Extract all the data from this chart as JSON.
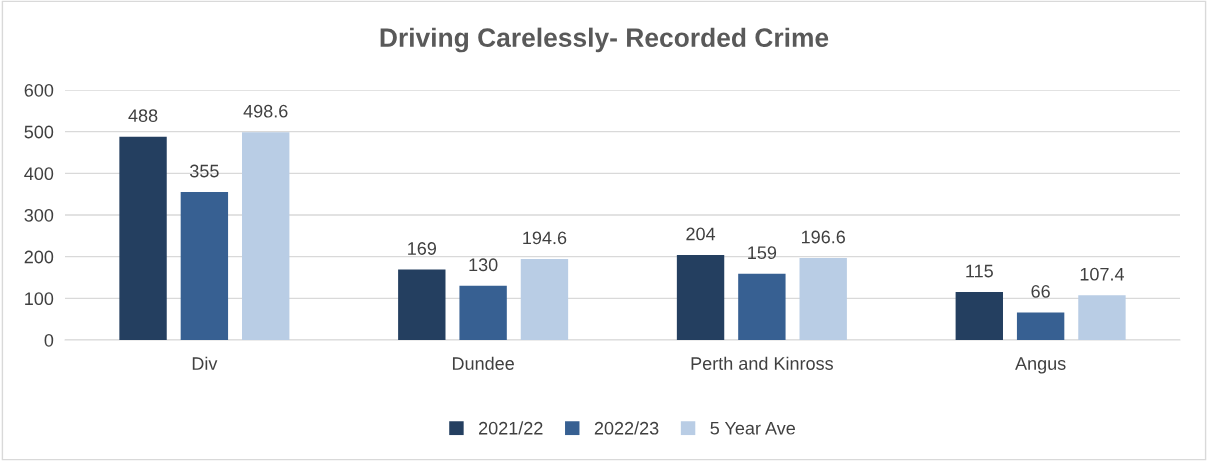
{
  "chart_data": {
    "type": "bar",
    "title": "Driving Carelessly- Recorded Crime",
    "categories": [
      "Div",
      "Dundee",
      "Perth and Kinross",
      "Angus"
    ],
    "series": [
      {
        "name": "2021/22",
        "color": "#243f60",
        "values": [
          488,
          169,
          204,
          115
        ]
      },
      {
        "name": "2022/23",
        "color": "#376092",
        "values": [
          355,
          130,
          159,
          66
        ]
      },
      {
        "name": "5 Year Ave",
        "color": "#b9cde5",
        "values": [
          498.6,
          194.6,
          196.6,
          107.4
        ]
      }
    ],
    "ylim": [
      0,
      600
    ],
    "yticks": [
      0,
      100,
      200,
      300,
      400,
      500,
      600
    ],
    "grid": "y",
    "legend": "bottom",
    "data_labels": true
  }
}
